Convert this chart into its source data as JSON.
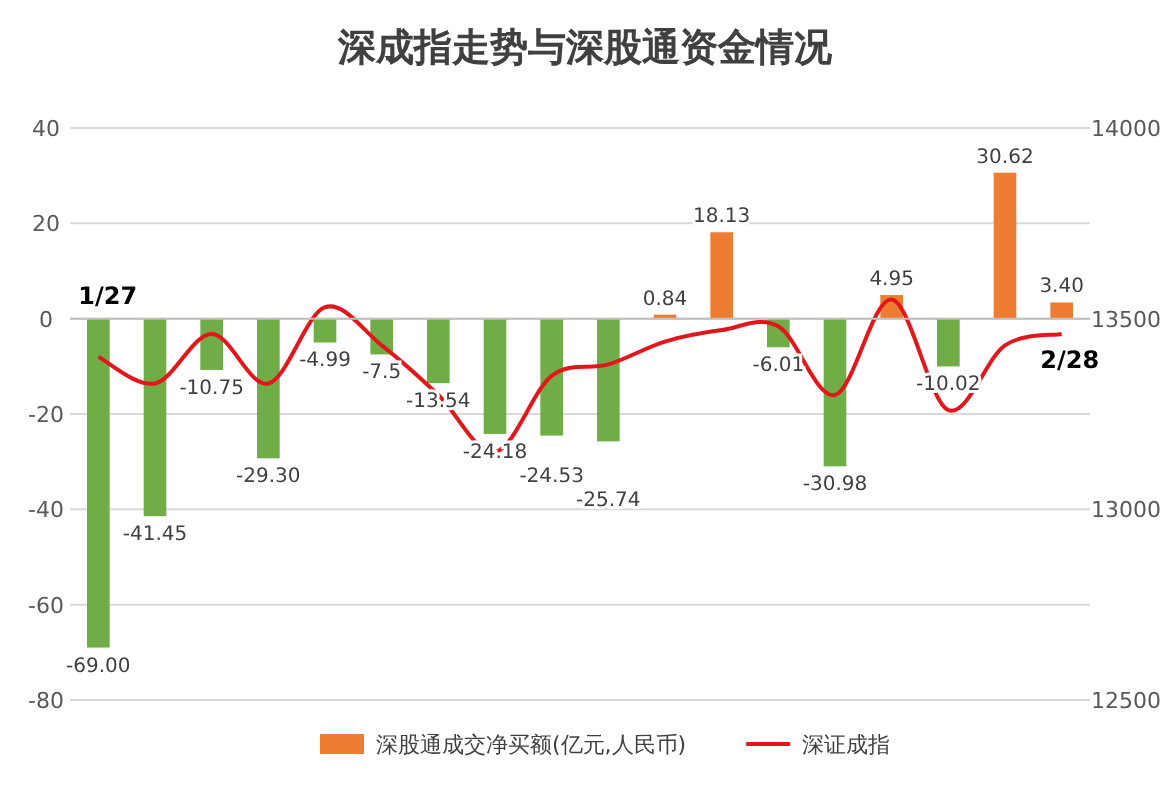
{
  "chart_data": {
    "type": "bar",
    "title": "深成指走势与深股通资金情况",
    "categories": [
      null,
      null,
      null,
      null,
      null,
      null,
      null,
      null,
      null,
      null,
      null,
      null,
      null,
      null,
      null,
      null,
      null,
      null
    ],
    "series": [
      {
        "name": "深股通成交净买额(亿元,人民币)",
        "color": "#ed7d31",
        "colors": [
          "#70ad47",
          "#70ad47",
          "#70ad47",
          "#70ad47",
          "#70ad47",
          "#70ad47",
          "#70ad47",
          "#70ad47",
          "#70ad47",
          "#70ad47",
          "#ed7d31",
          "#ed7d31",
          "#70ad47",
          "#70ad47",
          "#ed7d31",
          "#70ad47",
          "#ed7d31",
          "#ed7d31"
        ],
        "values": [
          -69.0,
          -41.45,
          -10.75,
          -29.3,
          -4.99,
          -7.5,
          -13.54,
          -24.18,
          -24.53,
          -25.74,
          0.84,
          18.13,
          -6.01,
          -30.98,
          4.95,
          -10.02,
          30.62,
          3.4
        ],
        "value_labels": [
          "-69.00",
          "-41.45",
          "-10.75",
          "-29.30",
          "-4.99",
          "-7.5",
          "-13.54",
          "-24.18",
          "-24.53",
          "-25.74",
          "0.84",
          "18.13",
          "-6.01",
          "-30.98",
          "4.95",
          "-10.02",
          "30.62",
          "3.40"
        ]
      },
      {
        "name": "深证成指",
        "type": "line",
        "axis": "y2",
        "color": "#e3171b",
        "values": [
          13400,
          13330,
          13460,
          13330,
          13530,
          13430,
          13300,
          13150,
          13350,
          13380,
          13440,
          13470,
          13480,
          13300,
          13550,
          13260,
          13430,
          13460
        ]
      }
    ],
    "ylim": [
      -80,
      40
    ],
    "yticks": [
      -80,
      -60,
      -40,
      -20,
      0,
      20,
      40
    ],
    "y2lim": [
      12500,
      14000
    ],
    "y2ticks": [
      12500,
      13000,
      13500,
      14000
    ],
    "grid": "y",
    "legend": "bottom",
    "marker": "none",
    "annotations": [
      "1/27",
      "2/28"
    ]
  }
}
